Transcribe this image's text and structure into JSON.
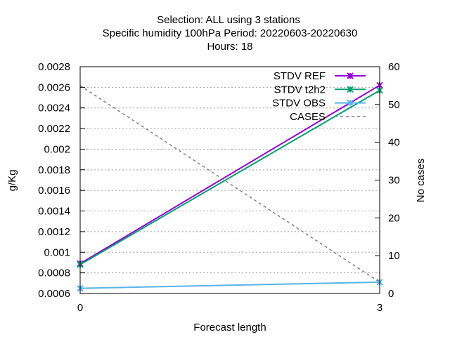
{
  "chart_data": {
    "type": "line",
    "title_lines": [
      "Selection: ALL using     3 stations",
      "Specific humidity 100hPa   Period: 20220603-20220630",
      "Hours:  18"
    ],
    "xlabel": "Forecast length",
    "ylabel": "g/Kg",
    "y2label": "No cases",
    "x": [
      0,
      3
    ],
    "xlim": [
      0,
      3
    ],
    "ylim": [
      0.0006,
      0.0028
    ],
    "y2lim": [
      0,
      60
    ],
    "x_ticks": [
      "0",
      "3"
    ],
    "y_ticks": [
      "0.0006",
      "0.0008",
      "0.001",
      "0.0012",
      "0.0014",
      "0.0016",
      "0.0018",
      "0.002",
      "0.0022",
      "0.0024",
      "0.0026",
      "0.0028"
    ],
    "y_tick_values": [
      0.0006,
      0.0008,
      0.001,
      0.0012,
      0.0014,
      0.0016,
      0.0018,
      0.002,
      0.0022,
      0.0024,
      0.0026,
      0.0028
    ],
    "y2_ticks": [
      "0",
      "10",
      "20",
      "30",
      "40",
      "50",
      "60"
    ],
    "y2_tick_values": [
      0,
      10,
      20,
      30,
      40,
      50,
      60
    ],
    "grid": true,
    "legend_position": "top-right",
    "series": [
      {
        "name": "STDV REF",
        "values": [
          0.00089,
          0.00262
        ],
        "color": "#9400d3",
        "axis": "y",
        "marker": "x"
      },
      {
        "name": "STDV t2h2",
        "values": [
          0.00088,
          0.00257
        ],
        "color": "#009e73",
        "axis": "y",
        "marker": "x"
      },
      {
        "name": "STDV OBS",
        "values": [
          0.00065,
          0.00071
        ],
        "color": "#56b4e9",
        "axis": "y",
        "marker": "x"
      },
      {
        "name": "CASES",
        "values": [
          55,
          3
        ],
        "color": "#808080",
        "axis": "y2",
        "marker": "none",
        "dashed": true
      }
    ]
  }
}
